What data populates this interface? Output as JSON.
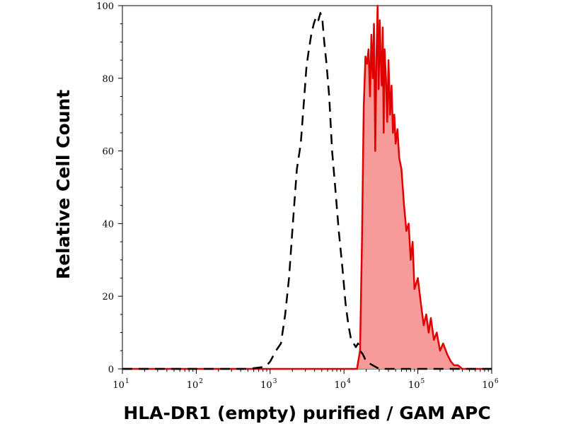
{
  "chart_data": {
    "type": "area",
    "xlabel": "HLA-DR1 (empty) purified / GAM APC",
    "ylabel": "Relative Cell Count",
    "x_scale": "log",
    "xlim": [
      10,
      1000000
    ],
    "ylim": [
      0,
      100
    ],
    "x_ticks": [
      {
        "base": "10",
        "exp": "1"
      },
      {
        "base": "10",
        "exp": "2"
      },
      {
        "base": "10",
        "exp": "3"
      },
      {
        "base": "10",
        "exp": "4"
      },
      {
        "base": "10",
        "exp": "5"
      },
      {
        "base": "10",
        "exp": "6"
      }
    ],
    "y_ticks": [
      "0",
      "20",
      "40",
      "60",
      "80",
      "100"
    ],
    "grid": false,
    "colors": {
      "stained_line": "#e00000",
      "stained_fill": "#f79a9a",
      "control_line": "#000000",
      "axis": "#000000"
    },
    "series": [
      {
        "style": "dashed-outline",
        "x": [
          10,
          500,
          800,
          900,
          1000,
          1200,
          1400,
          1600,
          1800,
          2000,
          2300,
          2600,
          2900,
          3100,
          3300,
          3600,
          3900,
          4200,
          4500,
          4800,
          5100,
          5400,
          5800,
          6300,
          6900,
          7600,
          8500,
          9500,
          10500,
          11500,
          12500,
          13500,
          14500,
          15500,
          16500,
          18000,
          20000,
          30000,
          1000000
        ],
        "y": [
          0,
          0,
          0.5,
          1,
          2,
          5,
          7,
          15,
          25,
          38,
          55,
          62,
          75,
          83,
          87,
          92,
          95,
          97,
          96,
          98,
          96,
          90,
          84,
          75,
          60,
          50,
          38,
          28,
          18,
          12,
          8,
          7,
          6,
          7,
          5,
          4,
          2,
          0,
          0
        ]
      },
      {
        "style": "filled",
        "x": [
          10,
          15000,
          16500,
          17500,
          18500,
          19500,
          20500,
          21500,
          22500,
          23500,
          24500,
          25500,
          26500,
          27500,
          28500,
          29500,
          30500,
          31500,
          32500,
          33500,
          34500,
          35500,
          37000,
          38500,
          40000,
          42000,
          44000,
          46000,
          48000,
          50000,
          53000,
          56000,
          60000,
          65000,
          70000,
          75000,
          80000,
          85000,
          90000,
          100000,
          110000,
          120000,
          130000,
          140000,
          150000,
          165000,
          180000,
          200000,
          220000,
          250000,
          280000,
          310000,
          350000,
          400000,
          1000000
        ],
        "y": [
          0,
          0,
          5,
          35,
          72,
          86,
          84,
          88,
          75,
          92,
          80,
          95,
          60,
          86,
          100,
          77,
          96,
          85,
          78,
          94,
          65,
          88,
          80,
          68,
          85,
          70,
          78,
          65,
          70,
          62,
          66,
          58,
          55,
          45,
          38,
          40,
          30,
          35,
          22,
          25,
          18,
          12,
          15,
          10,
          14,
          8,
          10,
          5,
          7,
          4,
          2,
          1,
          1,
          0,
          0
        ]
      }
    ]
  }
}
